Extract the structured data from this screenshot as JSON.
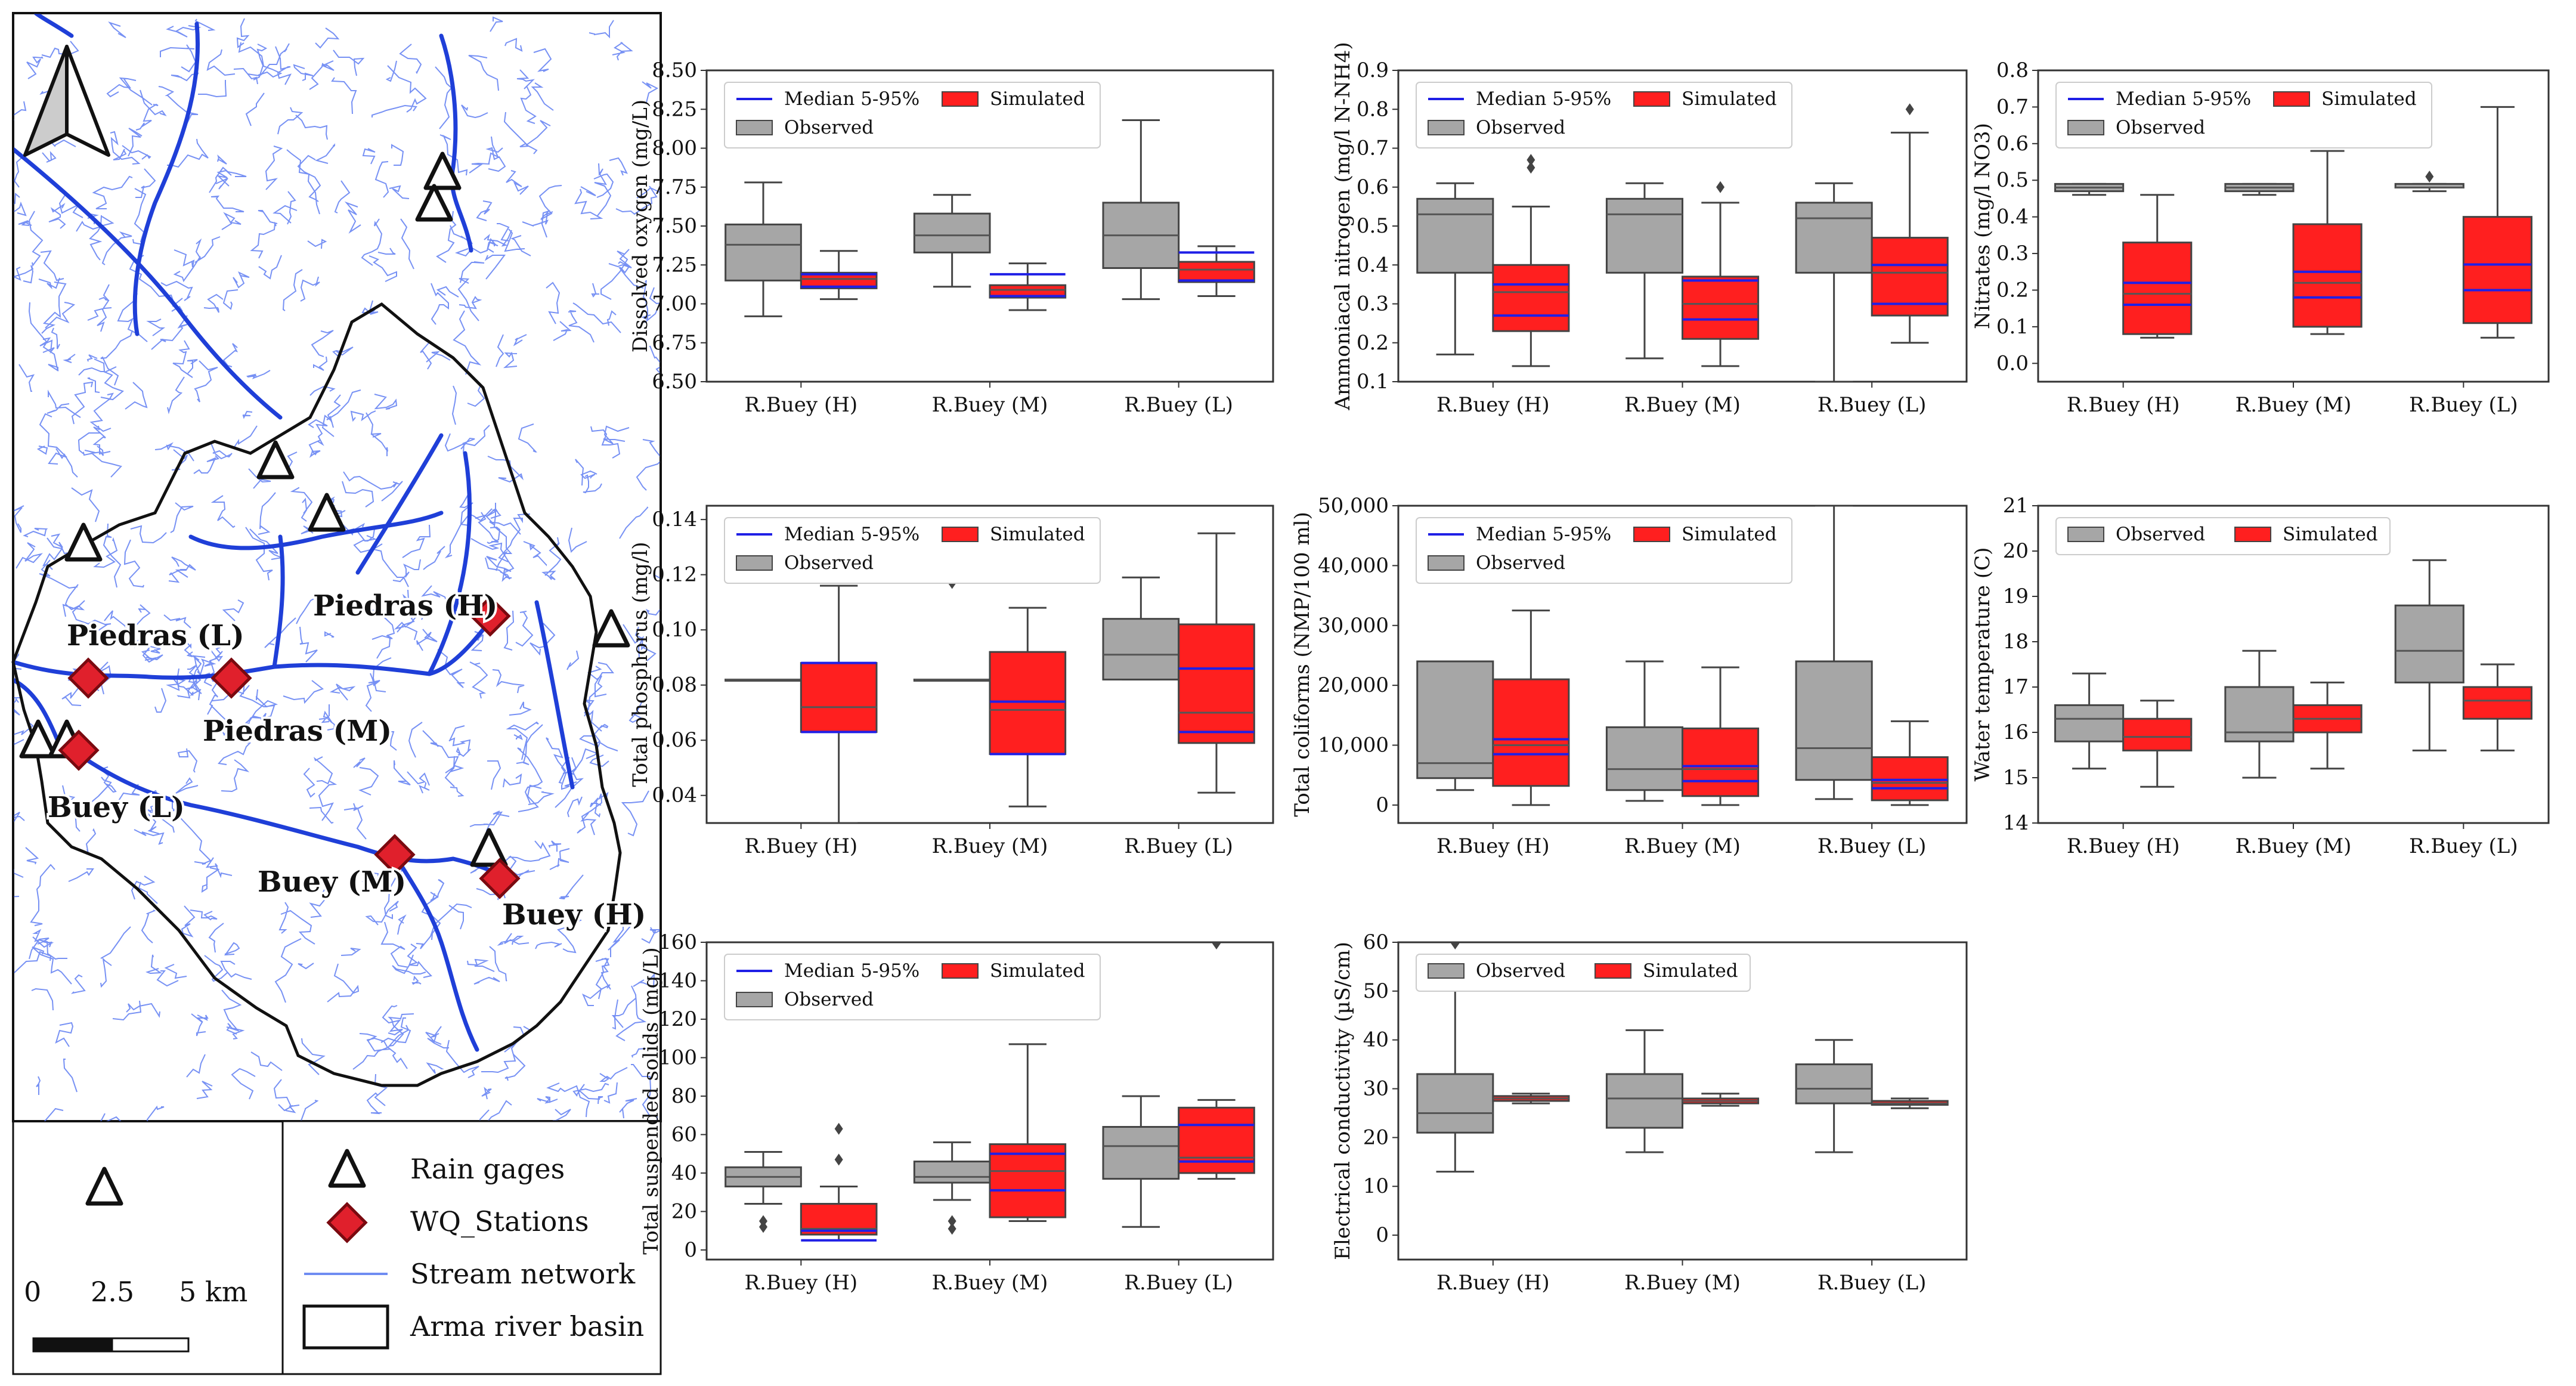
{
  "colors": {
    "observed": "#a6a6a6",
    "simulated": "#ff1f1f",
    "median": "#1f1fe6",
    "stream": "#2a4ce0",
    "basin": "#111111",
    "station": "#e0202c"
  },
  "map": {
    "north_icon": "north-arrow-icon",
    "stations": [
      {
        "label": "Piedras (H)"
      },
      {
        "label": "Piedras (L)"
      },
      {
        "label": "Piedras (M)"
      },
      {
        "label": "Buey (L)"
      },
      {
        "label": "Buey (M)"
      },
      {
        "label": "Buey (H)"
      }
    ],
    "legend": {
      "rain_gages": "Rain gages",
      "wq_stations": "WQ_Stations",
      "stream_network": "Stream network",
      "basin": "Arma river basin"
    },
    "scalebar": {
      "zero": "0",
      "mid": "2.5",
      "end": "5 km"
    }
  },
  "legend_labels": {
    "median": "Median 5-95%",
    "observed": "Observed",
    "simulated": "Simulated"
  },
  "chart_data": [
    {
      "type": "box",
      "ylabel": "Dissolved oxygen (mg/L)",
      "ylim": [
        6.5,
        8.5
      ],
      "decimals": 2,
      "yticks": [
        6.5,
        6.75,
        7.0,
        7.25,
        7.5,
        7.75,
        8.0,
        8.25,
        8.5
      ],
      "categories": [
        "R.Buey (H)",
        "R.Buey (M)",
        "R.Buey (L)"
      ],
      "legend": [
        "median",
        "simulated",
        "observed"
      ],
      "observed": [
        {
          "min": 6.92,
          "q1": 7.15,
          "med": 7.38,
          "q3": 7.51,
          "max": 7.78,
          "fliers": []
        },
        {
          "min": 7.11,
          "q1": 7.33,
          "med": 7.44,
          "q3": 7.58,
          "max": 7.7,
          "fliers": []
        },
        {
          "min": 7.03,
          "q1": 7.23,
          "med": 7.44,
          "q3": 7.65,
          "max": 8.18,
          "fliers": []
        }
      ],
      "simulated": [
        {
          "min": 7.03,
          "q1": 7.1,
          "med": 7.16,
          "q3": 7.2,
          "max": 7.34,
          "fliers": [],
          "blue": [
            7.11,
            7.19
          ]
        },
        {
          "min": 6.96,
          "q1": 7.04,
          "med": 7.09,
          "q3": 7.12,
          "max": 7.26,
          "fliers": [],
          "blue": [
            7.05,
            7.19
          ]
        },
        {
          "min": 7.05,
          "q1": 7.14,
          "med": 7.22,
          "q3": 7.27,
          "max": 7.37,
          "fliers": [],
          "blue": [
            7.15,
            7.33
          ]
        }
      ]
    },
    {
      "type": "box",
      "ylabel": "Ammoniacal nitrogen (mg/l N-NH4)",
      "ylim": [
        0.1,
        0.9
      ],
      "decimals": 1,
      "yticks": [
        0.1,
        0.2,
        0.3,
        0.4,
        0.5,
        0.6,
        0.7,
        0.8,
        0.9
      ],
      "categories": [
        "R.Buey (H)",
        "R.Buey (M)",
        "R.Buey (L)"
      ],
      "legend": [
        "median",
        "simulated",
        "observed"
      ],
      "observed": [
        {
          "min": 0.17,
          "q1": 0.38,
          "med": 0.53,
          "q3": 0.57,
          "max": 0.61,
          "fliers": []
        },
        {
          "min": 0.16,
          "q1": 0.38,
          "med": 0.53,
          "q3": 0.57,
          "max": 0.61,
          "fliers": []
        },
        {
          "min": 0.1,
          "q1": 0.38,
          "med": 0.52,
          "q3": 0.56,
          "max": 0.61,
          "fliers": []
        }
      ],
      "simulated": [
        {
          "min": 0.14,
          "q1": 0.23,
          "med": 0.33,
          "q3": 0.4,
          "max": 0.55,
          "fliers": [
            0.65,
            0.67
          ],
          "blue": [
            0.27,
            0.35
          ]
        },
        {
          "min": 0.14,
          "q1": 0.21,
          "med": 0.3,
          "q3": 0.37,
          "max": 0.56,
          "fliers": [
            0.6
          ],
          "blue": [
            0.26,
            0.36
          ]
        },
        {
          "min": 0.2,
          "q1": 0.27,
          "med": 0.38,
          "q3": 0.47,
          "max": 0.74,
          "fliers": [
            0.8
          ],
          "blue": [
            0.3,
            0.4
          ]
        }
      ]
    },
    {
      "type": "box",
      "ylabel": "Nitrates (mg/l NO3)",
      "ylim": [
        -0.05,
        0.8
      ],
      "decimals": 1,
      "yticks": [
        0.0,
        0.1,
        0.2,
        0.3,
        0.4,
        0.5,
        0.6,
        0.7,
        0.8
      ],
      "categories": [
        "R.Buey (H)",
        "R.Buey (M)",
        "R.Buey (L)"
      ],
      "legend": [
        "median",
        "simulated",
        "observed"
      ],
      "observed": [
        {
          "min": 0.46,
          "q1": 0.47,
          "med": 0.48,
          "q3": 0.49,
          "max": 0.49,
          "fliers": []
        },
        {
          "min": 0.46,
          "q1": 0.47,
          "med": 0.48,
          "q3": 0.49,
          "max": 0.49,
          "fliers": []
        },
        {
          "min": 0.47,
          "q1": 0.48,
          "med": 0.48,
          "q3": 0.49,
          "max": 0.49,
          "fliers": [
            0.51
          ]
        }
      ],
      "simulated": [
        {
          "min": 0.07,
          "q1": 0.08,
          "med": 0.19,
          "q3": 0.33,
          "max": 0.46,
          "fliers": [],
          "blue": [
            0.16,
            0.22
          ]
        },
        {
          "min": 0.08,
          "q1": 0.1,
          "med": 0.22,
          "q3": 0.38,
          "max": 0.58,
          "fliers": [],
          "blue": [
            0.18,
            0.25
          ]
        },
        {
          "min": 0.07,
          "q1": 0.11,
          "med": 0.2,
          "q3": 0.4,
          "max": 0.7,
          "fliers": [],
          "blue": [
            0.2,
            0.27
          ]
        }
      ]
    },
    {
      "type": "box",
      "ylabel": "Total phosphorus (mg/l)",
      "ylim": [
        0.03,
        0.145
      ],
      "decimals": 2,
      "yticks": [
        0.04,
        0.06,
        0.08,
        0.1,
        0.12,
        0.14
      ],
      "categories": [
        "R.Buey (H)",
        "R.Buey (M)",
        "R.Buey (L)"
      ],
      "legend": [
        "median",
        "simulated",
        "observed"
      ],
      "observed": [
        {
          "min": 0.082,
          "q1": 0.082,
          "med": 0.082,
          "q3": 0.082,
          "max": 0.082,
          "fliers": []
        },
        {
          "min": 0.082,
          "q1": 0.082,
          "med": 0.082,
          "q3": 0.082,
          "max": 0.082,
          "fliers": [
            0.117
          ]
        },
        {
          "min": 0.082,
          "q1": 0.082,
          "med": 0.091,
          "q3": 0.104,
          "max": 0.119,
          "fliers": []
        }
      ],
      "simulated": [
        {
          "min": 0.03,
          "q1": 0.063,
          "med": 0.072,
          "q3": 0.088,
          "max": 0.116,
          "fliers": [],
          "blue": [
            0.063,
            0.088
          ]
        },
        {
          "min": 0.036,
          "q1": 0.055,
          "med": 0.071,
          "q3": 0.092,
          "max": 0.108,
          "fliers": [],
          "blue": [
            0.055,
            0.074
          ]
        },
        {
          "min": 0.041,
          "q1": 0.059,
          "med": 0.07,
          "q3": 0.102,
          "max": 0.135,
          "fliers": [],
          "blue": [
            0.063,
            0.086
          ]
        }
      ]
    },
    {
      "type": "box",
      "ylabel": "Total coliforms (NMP/100 ml)",
      "ylim": [
        -3000,
        50000
      ],
      "decimals": 0,
      "thousands": true,
      "yticks": [
        0,
        10000,
        20000,
        30000,
        40000,
        50000
      ],
      "categories": [
        "R.Buey (H)",
        "R.Buey (M)",
        "R.Buey (L)"
      ],
      "legend": [
        "median",
        "simulated",
        "observed"
      ],
      "observed": [
        {
          "min": 2500,
          "q1": 4500,
          "med": 7000,
          "q3": 24000,
          "max": 24000,
          "fliers": []
        },
        {
          "min": 700,
          "q1": 2500,
          "med": 6000,
          "q3": 13000,
          "max": 24000,
          "fliers": []
        },
        {
          "min": 1000,
          "q1": 4200,
          "med": 9500,
          "q3": 24000,
          "max": 50000,
          "fliers": []
        }
      ],
      "simulated": [
        {
          "min": 0,
          "q1": 3200,
          "med": 10000,
          "q3": 21000,
          "max": 32500,
          "fliers": [],
          "blue": [
            8500,
            11000
          ]
        },
        {
          "min": 0,
          "q1": 1500,
          "med": 6000,
          "q3": 12800,
          "max": 23000,
          "fliers": [],
          "blue": [
            4000,
            6500
          ]
        },
        {
          "min": 0,
          "q1": 800,
          "med": 3700,
          "q3": 8000,
          "max": 14000,
          "fliers": [],
          "blue": [
            2800,
            4200
          ]
        }
      ]
    },
    {
      "type": "box",
      "ylabel": "Water temperature (C)",
      "ylim": [
        14,
        21
      ],
      "decimals": 0,
      "yticks": [
        14,
        15,
        16,
        17,
        18,
        19,
        20,
        21
      ],
      "categories": [
        "R.Buey (H)",
        "R.Buey (M)",
        "R.Buey (L)"
      ],
      "legend": [
        "observed",
        "simulated"
      ],
      "observed": [
        {
          "min": 15.2,
          "q1": 15.8,
          "med": 16.3,
          "q3": 16.6,
          "max": 17.3,
          "fliers": []
        },
        {
          "min": 15.0,
          "q1": 15.8,
          "med": 16.0,
          "q3": 17.0,
          "max": 17.8,
          "fliers": []
        },
        {
          "min": 15.6,
          "q1": 17.1,
          "med": 17.8,
          "q3": 18.8,
          "max": 19.8,
          "fliers": []
        }
      ],
      "simulated": [
        {
          "min": 14.8,
          "q1": 15.6,
          "med": 15.9,
          "q3": 16.3,
          "max": 16.7,
          "fliers": []
        },
        {
          "min": 15.2,
          "q1": 16.0,
          "med": 16.3,
          "q3": 16.6,
          "max": 17.1,
          "fliers": []
        },
        {
          "min": 15.6,
          "q1": 16.3,
          "med": 16.7,
          "q3": 17.0,
          "max": 17.5,
          "fliers": []
        }
      ]
    },
    {
      "type": "box",
      "ylabel": "Total suspended solids (mg/L)",
      "ylim": [
        -5,
        160
      ],
      "decimals": 0,
      "yticks": [
        0,
        20,
        40,
        60,
        80,
        100,
        120,
        140,
        160
      ],
      "categories": [
        "R.Buey (H)",
        "R.Buey (M)",
        "R.Buey (L)"
      ],
      "legend": [
        "median",
        "simulated",
        "observed"
      ],
      "observed": [
        {
          "min": 24,
          "q1": 33,
          "med": 38,
          "q3": 43,
          "max": 51,
          "fliers": [
            12,
            15
          ]
        },
        {
          "min": 26,
          "q1": 35,
          "med": 38,
          "q3": 46,
          "max": 56,
          "fliers": [
            11,
            15
          ]
        },
        {
          "min": 12,
          "q1": 37,
          "med": 54,
          "q3": 64,
          "max": 80,
          "fliers": []
        }
      ],
      "simulated": [
        {
          "min": 5,
          "q1": 8,
          "med": 11,
          "q3": 24,
          "max": 33,
          "fliers": [
            47,
            63
          ],
          "blue": [
            5,
            10
          ]
        },
        {
          "min": 15,
          "q1": 17,
          "med": 41,
          "q3": 55,
          "max": 107,
          "fliers": [],
          "blue": [
            31,
            50
          ]
        },
        {
          "min": 37,
          "q1": 40,
          "med": 48,
          "q3": 74,
          "max": 78,
          "fliers": [
            160
          ],
          "blue": [
            46,
            65
          ]
        }
      ]
    },
    {
      "type": "box",
      "ylabel": "Electrical conductivity (µS/cm)",
      "ylim": [
        -5,
        60
      ],
      "decimals": 0,
      "yticks": [
        0,
        10,
        20,
        30,
        40,
        50,
        60
      ],
      "categories": [
        "R.Buey (H)",
        "R.Buey (M)",
        "R.Buey (L)"
      ],
      "legend": [
        "observed",
        "simulated"
      ],
      "observed": [
        {
          "min": 13,
          "q1": 21,
          "med": 25,
          "q3": 33,
          "max": 52,
          "fliers": [
            60
          ]
        },
        {
          "min": 17,
          "q1": 22,
          "med": 28,
          "q3": 33,
          "max": 42,
          "fliers": []
        },
        {
          "min": 17,
          "q1": 27,
          "med": 30,
          "q3": 35,
          "max": 40,
          "fliers": []
        }
      ],
      "simulated": [
        {
          "min": 27,
          "q1": 27.5,
          "med": 28,
          "q3": 28.5,
          "max": 29,
          "fliers": []
        },
        {
          "min": 26.5,
          "q1": 27,
          "med": 27.5,
          "q3": 28,
          "max": 29,
          "fliers": []
        },
        {
          "min": 26,
          "q1": 26.7,
          "med": 27,
          "q3": 27.5,
          "max": 28,
          "fliers": []
        }
      ]
    }
  ]
}
